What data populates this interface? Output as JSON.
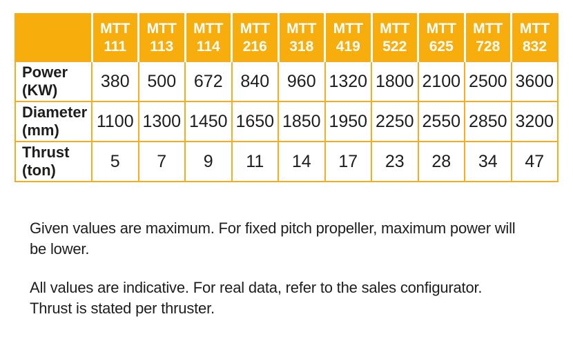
{
  "colors": {
    "orange": "#F7AD0B",
    "grid": "#F5AC21",
    "ink": "#1D1D1B",
    "header_text": "#FFFFFF"
  },
  "table": {
    "corner_label": "",
    "columns": [
      "MTT\n111",
      "MTT\n113",
      "MTT\n114",
      "MTT\n216",
      "MTT\n318",
      "MTT\n419",
      "MTT\n522",
      "MTT\n625",
      "MTT\n728",
      "MTT\n832"
    ],
    "rows": [
      {
        "label": "Power\n(KW)",
        "values": [
          "380",
          "500",
          "672",
          "840",
          "960",
          "1320",
          "1800",
          "2100",
          "2500",
          "3600"
        ]
      },
      {
        "label": "Diameter\n(mm)",
        "values": [
          "1100",
          "1300",
          "1450",
          "1650",
          "1850",
          "1950",
          "2250",
          "2550",
          "2850",
          "3200"
        ]
      },
      {
        "label": "Thrust\n(ton)",
        "values": [
          "5",
          "7",
          "9",
          "11",
          "14",
          "17",
          "23",
          "28",
          "34",
          "47"
        ]
      }
    ]
  },
  "notes": {
    "note1": "Given values are maximum. For fixed pitch propeller, maximum power will\nbe lower.",
    "note2": "All values are indicative. For real data, refer to the sales configurator.\nThrust is stated per thruster."
  }
}
